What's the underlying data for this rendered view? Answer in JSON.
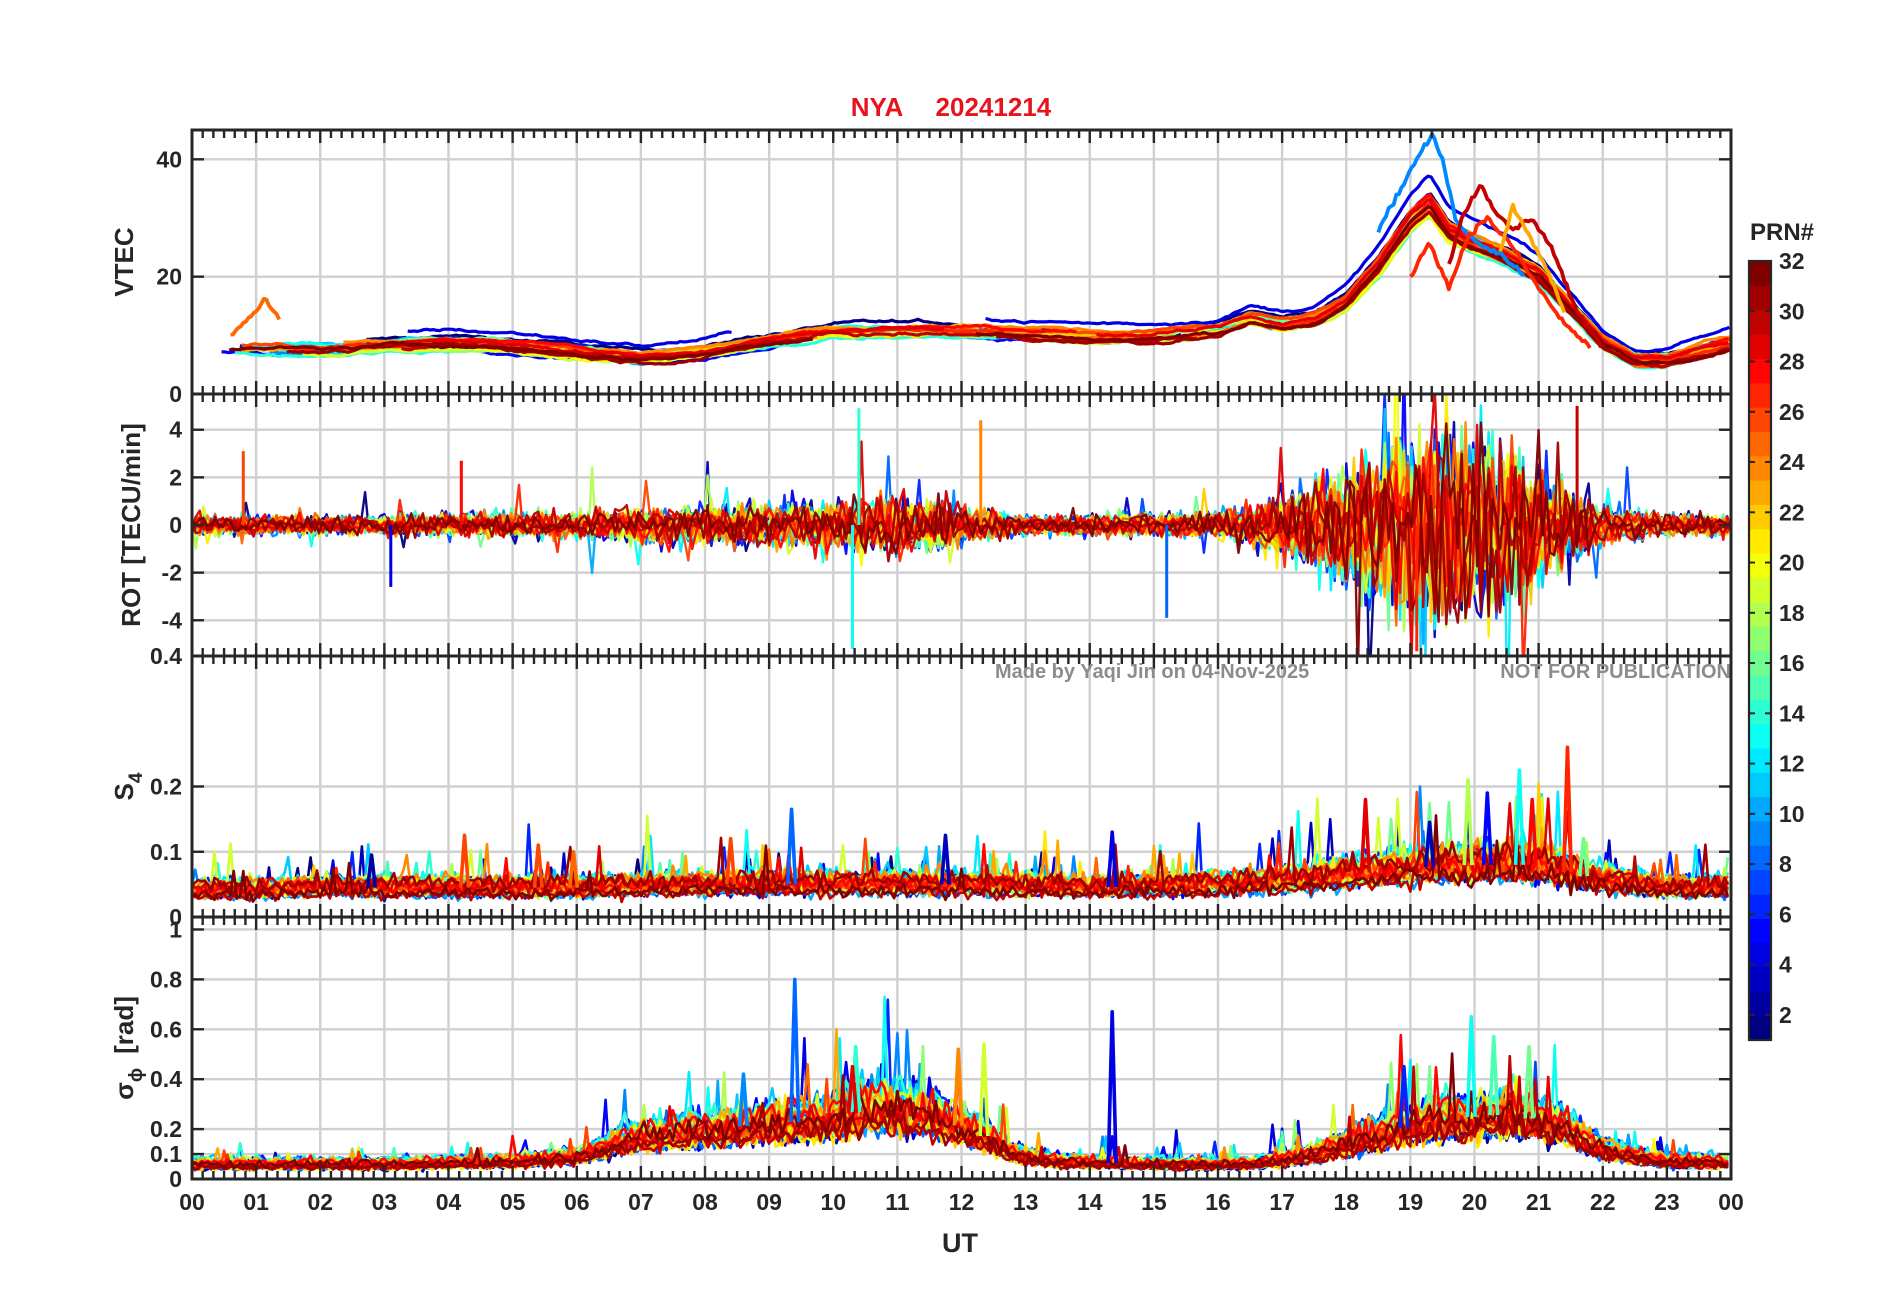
{
  "chart_data": {
    "type": "line",
    "title": {
      "station": "NYA",
      "date": "20241214"
    },
    "xlabel": "UT",
    "x_ticks": [
      "00",
      "01",
      "02",
      "03",
      "04",
      "05",
      "06",
      "07",
      "08",
      "09",
      "10",
      "11",
      "12",
      "13",
      "14",
      "15",
      "16",
      "17",
      "18",
      "19",
      "20",
      "21",
      "22",
      "23",
      "00"
    ],
    "xlim_hours": [
      0,
      24
    ],
    "watermark": {
      "left": "Made by Yaqi Jin on 04-Nov-2025",
      "right": "NOT FOR PUBLICATION"
    },
    "colorbar": {
      "title": "PRN#",
      "range": [
        1,
        32
      ],
      "ticks": [
        "2",
        "4",
        "6",
        "8",
        "10",
        "12",
        "14",
        "16",
        "18",
        "20",
        "22",
        "24",
        "26",
        "28",
        "30",
        "32"
      ]
    },
    "panels": [
      {
        "id": "vtec",
        "ylabel": "VTEC",
        "ylim": [
          0,
          45
        ],
        "y_ticks": [
          "0",
          "20",
          "40"
        ],
        "y_tick_values": [
          0,
          20,
          40
        ],
        "grid": true,
        "profile": {
          "hours": [
            0,
            1,
            2,
            3,
            4,
            5,
            6,
            7,
            8,
            9,
            10,
            11,
            12,
            13,
            14,
            15,
            16,
            16.5,
            17,
            17.5,
            18,
            18.5,
            19,
            19.3,
            19.6,
            20,
            20.5,
            21,
            21.5,
            22,
            22.5,
            23,
            24
          ],
          "values": [
            8,
            8,
            8,
            8.5,
            9,
            8.5,
            7.5,
            6.5,
            7.5,
            9.5,
            11,
            11,
            11,
            10.5,
            10,
            10,
            11,
            13,
            12,
            13,
            16,
            22,
            30,
            33,
            28,
            26,
            24,
            21,
            15,
            9,
            6,
            6,
            9
          ]
        },
        "spread": 3,
        "features": [
          {
            "prn": 9,
            "hours": [
              18.5,
              18.9,
              19.2,
              19.35,
              19.5,
              19.7,
              20.0,
              20.4,
              20.8
            ],
            "values": [
              28,
              36,
              42,
              44,
              40,
              30,
              26,
              24,
              20
            ]
          },
          {
            "prn": 30,
            "hours": [
              19.6,
              19.8,
              20.0,
              20.1,
              20.3,
              20.6,
              20.9,
              21.2,
              21.6,
              22.0
            ],
            "values": [
              22,
              30,
              34,
              36,
              31,
              28,
              30,
              25,
              14,
              8
            ]
          },
          {
            "prn": 27,
            "hours": [
              19.0,
              19.3,
              19.6,
              19.9,
              20.2,
              20.6,
              21.0,
              21.4,
              21.8
            ],
            "values": [
              20,
              26,
              18,
              27,
              30,
              25,
              18,
              12,
              8
            ]
          },
          {
            "prn": 25,
            "hours": [
              0.6,
              0.9,
              1.15,
              1.4
            ],
            "values": [
              10,
              13,
              16,
              12
            ]
          },
          {
            "prn": 23,
            "hours": [
              20.4,
              20.6,
              20.8,
              21.1,
              21.4
            ],
            "values": [
              24,
              32,
              28,
              22,
              14
            ]
          }
        ]
      },
      {
        "id": "rot",
        "ylabel": "ROT [TECU/min]",
        "ylim": [
          -5.5,
          5.5
        ],
        "y_ticks": [
          "-4",
          "-2",
          "0",
          "2",
          "4"
        ],
        "y_tick_values": [
          -4,
          -2,
          0,
          2,
          4
        ],
        "grid": true,
        "profile": {
          "hours": [
            0,
            2,
            4,
            6,
            7,
            8,
            9,
            10,
            11,
            12,
            13,
            14,
            16,
            16.8,
            17.5,
            18,
            18.5,
            19,
            19.5,
            20,
            20.5,
            21,
            21.5,
            22,
            23,
            24
          ],
          "values": [
            0.5,
            0.5,
            0.6,
            0.7,
            0.9,
            1.0,
            1.1,
            1.2,
            1.5,
            1.0,
            0.5,
            0.5,
            0.7,
            1.4,
            2.2,
            3.3,
            4.4,
            5.2,
            5.4,
            5.0,
            4.4,
            3.2,
            2.0,
            1.0,
            0.6,
            0.5
          ]
        },
        "spikes": [
          {
            "prn": 8,
            "hour": 15.2,
            "value": -3.9
          },
          {
            "prn": 13,
            "hour": 10.3,
            "value": -5.2
          },
          {
            "prn": 14,
            "hour": 10.4,
            "value": 4.9
          },
          {
            "prn": 26,
            "hour": 0.8,
            "value": 3.1
          },
          {
            "prn": 28,
            "hour": 4.2,
            "value": 2.7
          },
          {
            "prn": 4,
            "hour": 3.1,
            "value": -2.6
          },
          {
            "prn": 30,
            "hour": 21.6,
            "value": 5.0
          },
          {
            "prn": 27,
            "hour": 19.1,
            "value": -5.3
          },
          {
            "prn": 24,
            "hour": 12.3,
            "value": 4.4
          }
        ]
      },
      {
        "id": "s4",
        "ylabel": "S",
        "ylabel_sub": "4",
        "ylim": [
          0,
          0.4
        ],
        "y_ticks": [
          "0",
          "0.1",
          "0.2",
          "0.4"
        ],
        "y_tick_values": [
          0,
          0.1,
          0.2,
          0.4
        ],
        "grid": true,
        "profile": {
          "hours": [
            0,
            2,
            4,
            6,
            8,
            10,
            12,
            14,
            16,
            17,
            18,
            19,
            20,
            21,
            22,
            23,
            24
          ],
          "values": [
            0.04,
            0.045,
            0.045,
            0.045,
            0.05,
            0.05,
            0.05,
            0.045,
            0.05,
            0.055,
            0.065,
            0.075,
            0.08,
            0.08,
            0.055,
            0.045,
            0.045
          ]
        },
        "spikes": [
          {
            "prn": 26,
            "hour": 4.25,
            "value": 0.125
          },
          {
            "prn": 26,
            "hour": 5.4,
            "value": 0.11
          },
          {
            "prn": 25,
            "hour": 5.95,
            "value": 0.1
          },
          {
            "prn": 26,
            "hour": 8.4,
            "value": 0.12
          },
          {
            "prn": 8,
            "hour": 9.35,
            "value": 0.165
          },
          {
            "prn": 3,
            "hour": 11.75,
            "value": 0.125
          },
          {
            "prn": 4,
            "hour": 14.35,
            "value": 0.13
          },
          {
            "prn": 29,
            "hour": 18.3,
            "value": 0.18
          },
          {
            "prn": 18,
            "hour": 19.9,
            "value": 0.21
          },
          {
            "prn": 5,
            "hour": 20.2,
            "value": 0.19
          },
          {
            "prn": 13,
            "hour": 20.7,
            "value": 0.225
          },
          {
            "prn": 27,
            "hour": 21.45,
            "value": 0.26
          },
          {
            "prn": 28,
            "hour": 20.9,
            "value": 0.18
          },
          {
            "prn": 16,
            "hour": 21.7,
            "value": 0.12
          },
          {
            "prn": 2,
            "hour": 2.8,
            "value": 0.095
          },
          {
            "prn": 3,
            "hour": 19.3,
            "value": 0.145
          }
        ]
      },
      {
        "id": "sigma_phi",
        "ylabel": "σ",
        "ylabel_sub": "ϕ",
        "ylabel_unit": "[rad]",
        "ylim": [
          0,
          1.05
        ],
        "y_ticks": [
          "0",
          "0.1",
          "0.2",
          "0.4",
          "0.6",
          "0.8",
          "1"
        ],
        "y_tick_values": [
          0,
          0.1,
          0.2,
          0.4,
          0.6,
          0.8,
          1.0
        ],
        "grid": true,
        "profile": {
          "hours": [
            0,
            3,
            5,
            6,
            6.8,
            8,
            9,
            10,
            10.5,
            11,
            11.5,
            12.3,
            12.8,
            13.5,
            15,
            16.5,
            17.5,
            18.5,
            19.5,
            20.5,
            21.3,
            22,
            23,
            24
          ],
          "values": [
            0.06,
            0.06,
            0.07,
            0.09,
            0.16,
            0.2,
            0.22,
            0.24,
            0.28,
            0.28,
            0.26,
            0.18,
            0.1,
            0.07,
            0.06,
            0.06,
            0.1,
            0.18,
            0.24,
            0.26,
            0.22,
            0.12,
            0.07,
            0.07
          ]
        },
        "spikes": [
          {
            "prn": 8,
            "hour": 9.4,
            "value": 0.8
          },
          {
            "prn": 4,
            "hour": 14.35,
            "value": 0.67
          },
          {
            "prn": 13,
            "hour": 19.95,
            "value": 0.65
          },
          {
            "prn": 15,
            "hour": 20.3,
            "value": 0.57
          },
          {
            "prn": 16,
            "hour": 20.85,
            "value": 0.53
          },
          {
            "prn": 14,
            "hour": 10.35,
            "value": 0.53
          },
          {
            "prn": 19,
            "hour": 12.35,
            "value": 0.54
          },
          {
            "prn": 24,
            "hour": 11.95,
            "value": 0.52
          },
          {
            "prn": 6,
            "hour": 18.9,
            "value": 0.45
          },
          {
            "prn": 29,
            "hour": 10.3,
            "value": 0.45
          },
          {
            "prn": 9,
            "hour": 8.6,
            "value": 0.42
          }
        ]
      }
    ]
  }
}
